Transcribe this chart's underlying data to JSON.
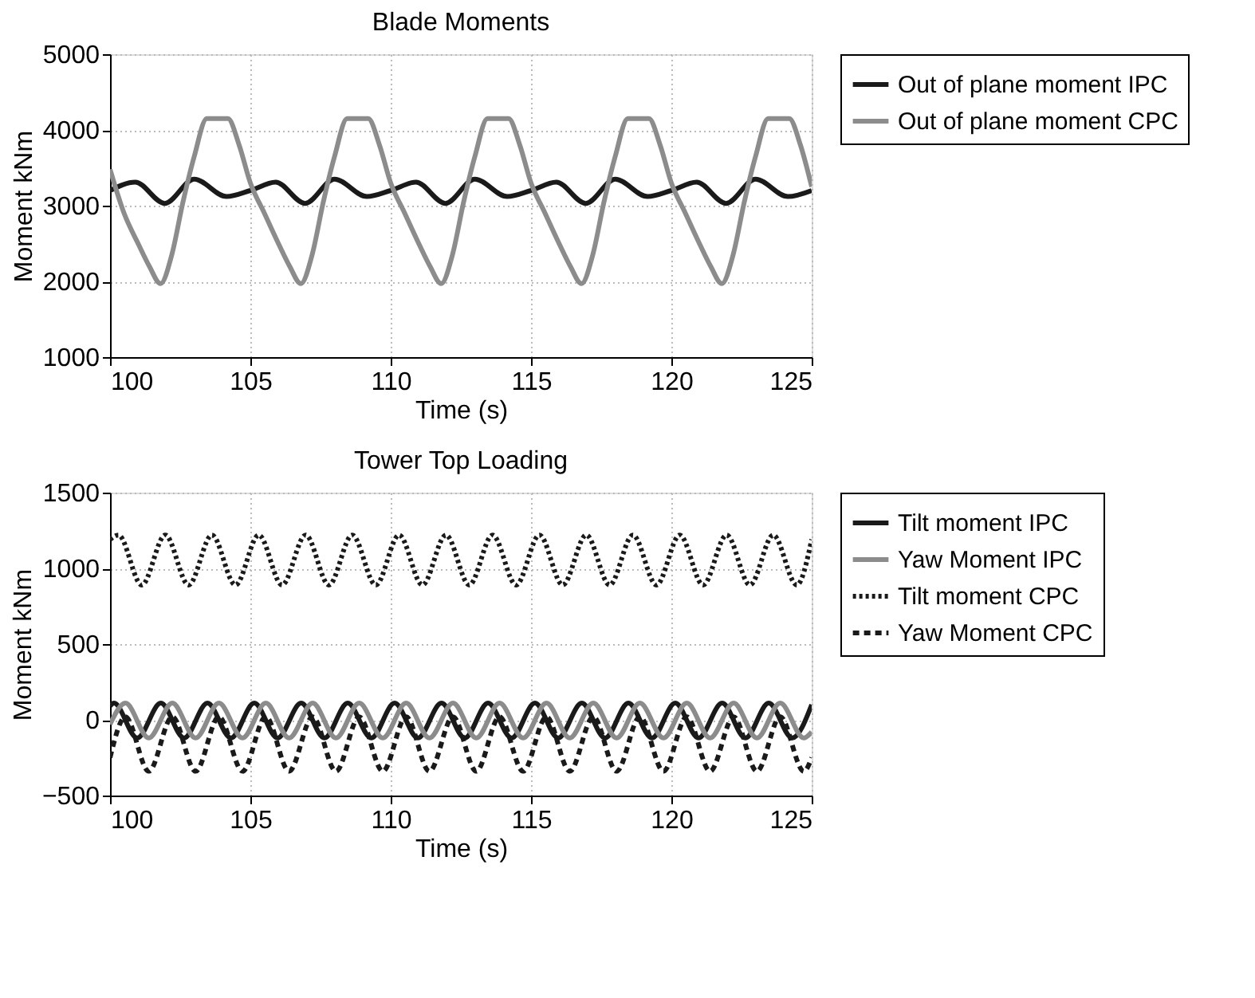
{
  "chart_data": [
    {
      "type": "line",
      "title": "Blade Moments",
      "xlabel": "Time (s)",
      "ylabel": "Moment kNm",
      "xlim": [
        100,
        125
      ],
      "xticks": [
        100,
        105,
        110,
        115,
        120,
        125
      ],
      "ylim": [
        1000,
        5000
      ],
      "yticks": [
        1000,
        2000,
        3000,
        4000,
        5000
      ],
      "grid": true,
      "legend": "right",
      "series": [
        {
          "name": "Out of plane moment IPC",
          "color": "#1a1a1a",
          "line_style": "solid",
          "x": [
            100,
            100.9,
            101.95,
            103.0,
            104.15,
            105,
            105.9,
            106.95,
            108.0,
            109.15,
            110,
            110.9,
            111.95,
            113.0,
            114.15,
            115,
            115.9,
            116.95,
            118.0,
            119.15,
            120,
            120.9,
            121.95,
            123.0,
            124.15,
            125
          ],
          "values": [
            3200,
            3310,
            3030,
            3350,
            3120,
            3200,
            3310,
            3030,
            3350,
            3120,
            3200,
            3310,
            3030,
            3350,
            3120,
            3200,
            3310,
            3030,
            3350,
            3120,
            3200,
            3310,
            3030,
            3350,
            3120,
            3200
          ]
        },
        {
          "name": "Out of plane moment CPC",
          "color": "#8c8c8c",
          "line_style": "solid",
          "x": [
            100,
            100.5,
            101.0,
            101.4,
            101.8,
            102.2,
            102.6,
            103.0,
            103.45,
            104.2,
            104.6,
            105,
            105.5,
            106.0,
            106.4,
            106.8,
            107.2,
            107.6,
            108.0,
            108.45,
            109.2,
            109.6,
            110,
            110.5,
            111.0,
            111.4,
            111.8,
            112.2,
            112.6,
            113.0,
            113.45,
            114.2,
            114.6,
            115,
            115.5,
            116.0,
            116.4,
            116.8,
            117.2,
            117.6,
            118.0,
            118.45,
            119.2,
            119.6,
            120,
            120.5,
            121.0,
            121.4,
            121.8,
            122.2,
            122.6,
            123.0,
            123.45,
            124.2,
            124.6,
            125
          ],
          "values": [
            3480,
            2900,
            2500,
            2200,
            1970,
            2350,
            3050,
            3650,
            4150,
            4150,
            3800,
            3300,
            2900,
            2500,
            2200,
            1970,
            2350,
            3050,
            3650,
            4150,
            4150,
            3800,
            3300,
            2900,
            2500,
            2200,
            1970,
            2350,
            3050,
            3650,
            4150,
            4150,
            3800,
            3300,
            2900,
            2500,
            2200,
            1970,
            2350,
            3050,
            3650,
            4150,
            4150,
            3800,
            3300,
            2900,
            2500,
            2200,
            1970,
            2350,
            3050,
            3650,
            4150,
            4150,
            3800,
            3250
          ]
        }
      ]
    },
    {
      "type": "line",
      "title": "Tower Top Loading",
      "xlabel": "Time (s)",
      "ylabel": "Moment kNm",
      "xlim": [
        100,
        125
      ],
      "xticks": [
        100,
        105,
        110,
        115,
        120,
        125
      ],
      "ylim": [
        -500,
        1500
      ],
      "yticks": [
        -500,
        0,
        500,
        1000,
        1500
      ],
      "grid": true,
      "legend": "right",
      "series": [
        {
          "name": "Tilt moment IPC",
          "color": "#1a1a1a",
          "line_style": "solid",
          "x": [
            100,
            100.14,
            100.97,
            101.81,
            102.64,
            103.47,
            104.31,
            105.14,
            105.97,
            106.81,
            107.64,
            108.47,
            109.31,
            110.14,
            110.97,
            111.81,
            112.64,
            113.47,
            114.31,
            115.14,
            115.97,
            116.81,
            117.64,
            118.47,
            119.31,
            120.14,
            120.97,
            121.81,
            122.64,
            123.47,
            124.31,
            125
          ],
          "values": [
            90,
            110,
            -120,
            110,
            -120,
            110,
            -120,
            110,
            -120,
            110,
            -120,
            110,
            -120,
            110,
            -120,
            110,
            -120,
            110,
            -120,
            110,
            -120,
            110,
            -120,
            110,
            -120,
            110,
            -120,
            110,
            -120,
            110,
            -120,
            100
          ]
        },
        {
          "name": "Yaw Moment IPC",
          "color": "#8c8c8c",
          "line_style": "solid",
          "x": [
            100,
            100.55,
            101.38,
            102.22,
            103.05,
            103.88,
            104.72,
            105.55,
            106.38,
            107.22,
            108.05,
            108.88,
            109.72,
            110.55,
            111.38,
            112.22,
            113.05,
            113.88,
            114.72,
            115.55,
            116.38,
            117.22,
            118.05,
            118.88,
            119.72,
            120.55,
            121.38,
            122.22,
            123.05,
            123.88,
            124.72,
            125
          ],
          "values": [
            -30,
            110,
            -120,
            110,
            -120,
            110,
            -120,
            110,
            -120,
            110,
            -120,
            110,
            -120,
            110,
            -120,
            110,
            -120,
            110,
            -120,
            110,
            -120,
            110,
            -120,
            110,
            -120,
            110,
            -120,
            110,
            -120,
            110,
            -120,
            -80
          ]
        },
        {
          "name": "Tilt moment CPC",
          "color": "#1a1a1a",
          "line_style": "dotted",
          "x": [
            100,
            100.3,
            101.13,
            101.97,
            102.8,
            103.63,
            104.47,
            105.3,
            106.13,
            106.97,
            107.8,
            108.63,
            109.47,
            110.3,
            111.13,
            111.97,
            112.8,
            113.63,
            114.47,
            115.3,
            116.13,
            116.97,
            117.8,
            118.63,
            119.47,
            120.3,
            121.13,
            121.97,
            122.8,
            123.63,
            124.47,
            125
          ],
          "values": [
            1190,
            1220,
            890,
            1220,
            890,
            1220,
            890,
            1220,
            890,
            1220,
            890,
            1220,
            890,
            1220,
            890,
            1220,
            890,
            1220,
            890,
            1220,
            890,
            1220,
            890,
            1220,
            890,
            1220,
            890,
            1220,
            890,
            1220,
            890,
            1190
          ]
        },
        {
          "name": "Yaw Moment CPC",
          "color": "#1a1a1a",
          "line_style": "dashed",
          "x": [
            100,
            100.55,
            101.38,
            102.22,
            103.05,
            103.88,
            104.72,
            105.55,
            106.38,
            107.22,
            108.05,
            108.88,
            109.72,
            110.55,
            111.38,
            112.22,
            113.05,
            113.88,
            114.72,
            115.55,
            116.38,
            117.22,
            118.05,
            118.88,
            119.72,
            120.55,
            121.38,
            122.22,
            123.05,
            123.88,
            124.72,
            125
          ],
          "values": [
            -250,
            20,
            -340,
            20,
            -340,
            20,
            -340,
            20,
            -340,
            20,
            -340,
            20,
            -340,
            20,
            -340,
            20,
            -340,
            20,
            -340,
            20,
            -340,
            20,
            -340,
            20,
            -340,
            20,
            -340,
            20,
            -340,
            20,
            -340,
            -250
          ]
        }
      ]
    }
  ]
}
